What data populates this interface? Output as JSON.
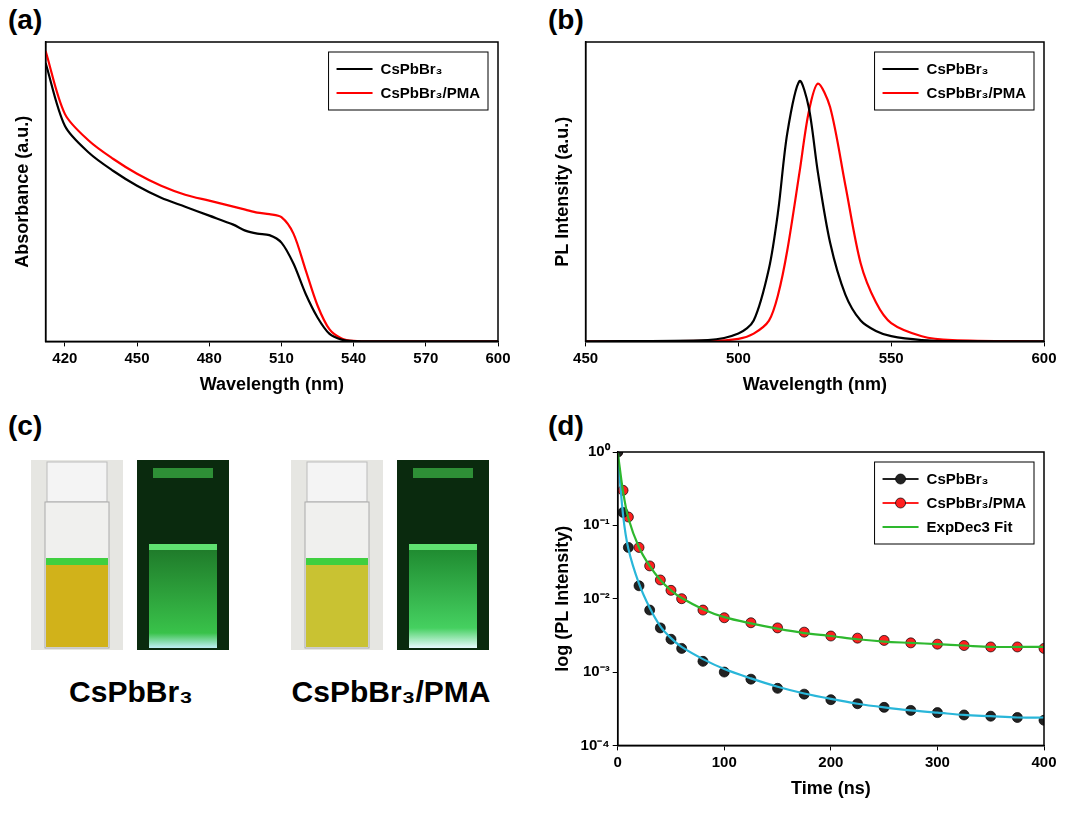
{
  "chart_data": [
    {
      "panel_label": "(a)",
      "type": "line",
      "x_label": "Wavelength (nm)",
      "y_label": "Absorbance (a.u.)",
      "x": [
        412,
        420,
        430,
        440,
        450,
        460,
        470,
        480,
        490,
        495,
        500,
        505,
        510,
        515,
        520,
        525,
        530,
        535,
        540,
        550,
        570,
        600
      ],
      "xlim": [
        412,
        600
      ],
      "xticks": [
        420,
        450,
        480,
        510,
        540,
        570,
        600
      ],
      "ylim": [
        0,
        1
      ],
      "tick_labels": "x",
      "grid": false,
      "legend": "top-right",
      "series": [
        {
          "name": "CsPbBr₃",
          "color": "#000000",
          "values": [
            0.93,
            0.72,
            0.63,
            0.57,
            0.52,
            0.48,
            0.45,
            0.42,
            0.39,
            0.37,
            0.36,
            0.355,
            0.33,
            0.26,
            0.16,
            0.08,
            0.025,
            0.006,
            0.001,
            0,
            0,
            0
          ]
        },
        {
          "name": "CsPbBr₃/PMA",
          "color": "#ff0000",
          "values": [
            0.97,
            0.76,
            0.67,
            0.61,
            0.56,
            0.52,
            0.49,
            0.47,
            0.45,
            0.44,
            0.43,
            0.425,
            0.415,
            0.36,
            0.24,
            0.12,
            0.04,
            0.01,
            0.002,
            0,
            0,
            0
          ]
        }
      ]
    },
    {
      "panel_label": "(b)",
      "type": "line",
      "x_label": "Wavelength (nm)",
      "y_label": "PL Intensity (a.u.)",
      "x": [
        450,
        490,
        500,
        505,
        510,
        513,
        516,
        520,
        523,
        526,
        530,
        535,
        540,
        545,
        550,
        560,
        570,
        600
      ],
      "xlim": [
        450,
        600
      ],
      "xticks": [
        450,
        500,
        550,
        600
      ],
      "ylim": [
        0,
        1.15
      ],
      "tick_labels": "x",
      "grid": false,
      "legend": "top-right",
      "series": [
        {
          "name": "CsPbBr₃",
          "color": "#000000",
          "values": [
            0,
            0.005,
            0.03,
            0.08,
            0.28,
            0.5,
            0.8,
            1.0,
            0.9,
            0.65,
            0.38,
            0.18,
            0.08,
            0.04,
            0.02,
            0.005,
            0.001,
            0
          ]
        },
        {
          "name": "CsPbBr₃/PMA",
          "color": "#ff0000",
          "values": [
            0,
            0.002,
            0.01,
            0.03,
            0.08,
            0.18,
            0.35,
            0.65,
            0.88,
            0.99,
            0.9,
            0.6,
            0.3,
            0.15,
            0.07,
            0.02,
            0.005,
            0
          ]
        }
      ]
    },
    {
      "panel_label": "(d)",
      "type": "scatter",
      "x_label": "Time (ns)",
      "y_label": "log (PL Intensity)",
      "x": [
        0,
        5,
        10,
        20,
        30,
        40,
        50,
        60,
        80,
        100,
        125,
        150,
        175,
        200,
        225,
        250,
        275,
        300,
        325,
        350,
        375,
        400
      ],
      "xlim": [
        0,
        400
      ],
      "xticks": [
        0,
        100,
        200,
        300,
        400
      ],
      "ylim": [
        0.0001,
        1
      ],
      "yticks": [
        {
          "value": 0.0001,
          "label": "10⁻⁴"
        },
        {
          "value": 0.001,
          "label": "10⁻³"
        },
        {
          "value": 0.01,
          "label": "10⁻²"
        },
        {
          "value": 0.1,
          "label": "10⁻¹"
        },
        {
          "value": 1,
          "label": "10⁰"
        }
      ],
      "log": "y",
      "grid": false,
      "legend": "top-right",
      "series": [
        {
          "name": "CsPbBr₃",
          "color": "#222222",
          "type": "scatter",
          "marker": "circle",
          "values": [
            1,
            0.15,
            0.05,
            0.015,
            0.007,
            0.004,
            0.0028,
            0.0021,
            0.0014,
            0.001,
            0.0008,
            0.0006,
            0.0005,
            0.00042,
            0.00037,
            0.00033,
            0.0003,
            0.00028,
            0.00026,
            0.00025,
            0.00024,
            0.00022
          ]
        },
        {
          "name": "CsPbBr₃/PMA",
          "color": "#ff2020",
          "type": "scatter",
          "marker": "circle",
          "values": [
            1,
            0.3,
            0.13,
            0.05,
            0.028,
            0.018,
            0.013,
            0.01,
            0.007,
            0.0055,
            0.0047,
            0.004,
            0.0035,
            0.0031,
            0.0029,
            0.0027,
            0.0025,
            0.0024,
            0.0023,
            0.0022,
            0.0022,
            0.0021
          ]
        },
        {
          "name": "ExpDec3 Fit",
          "color": "#2eb82e",
          "type": "line",
          "line_style": "solid",
          "values": [
            1,
            0.29,
            0.125,
            0.05,
            0.028,
            0.018,
            0.013,
            0.0102,
            0.0072,
            0.0056,
            0.0046,
            0.0039,
            0.0034,
            0.0031,
            0.0028,
            0.0026,
            0.0025,
            0.0024,
            0.0023,
            0.0022,
            0.0022,
            0.0022
          ]
        },
        {
          "color": "#29b6d9",
          "type": "line",
          "line_style": "solid",
          "values": [
            1,
            0.14,
            0.048,
            0.016,
            0.0075,
            0.0042,
            0.0029,
            0.0022,
            0.0015,
            0.0011,
            0.00082,
            0.00063,
            0.00051,
            0.00043,
            0.00037,
            0.00033,
            0.0003,
            0.00028,
            0.00026,
            0.00025,
            0.00024,
            0.00024
          ]
        }
      ]
    }
  ],
  "photos": {
    "panel_label": "(c)",
    "images": [
      {
        "label": "CsPbBr₃"
      },
      {
        "label": "CsPbBr₃/PMA"
      }
    ]
  }
}
